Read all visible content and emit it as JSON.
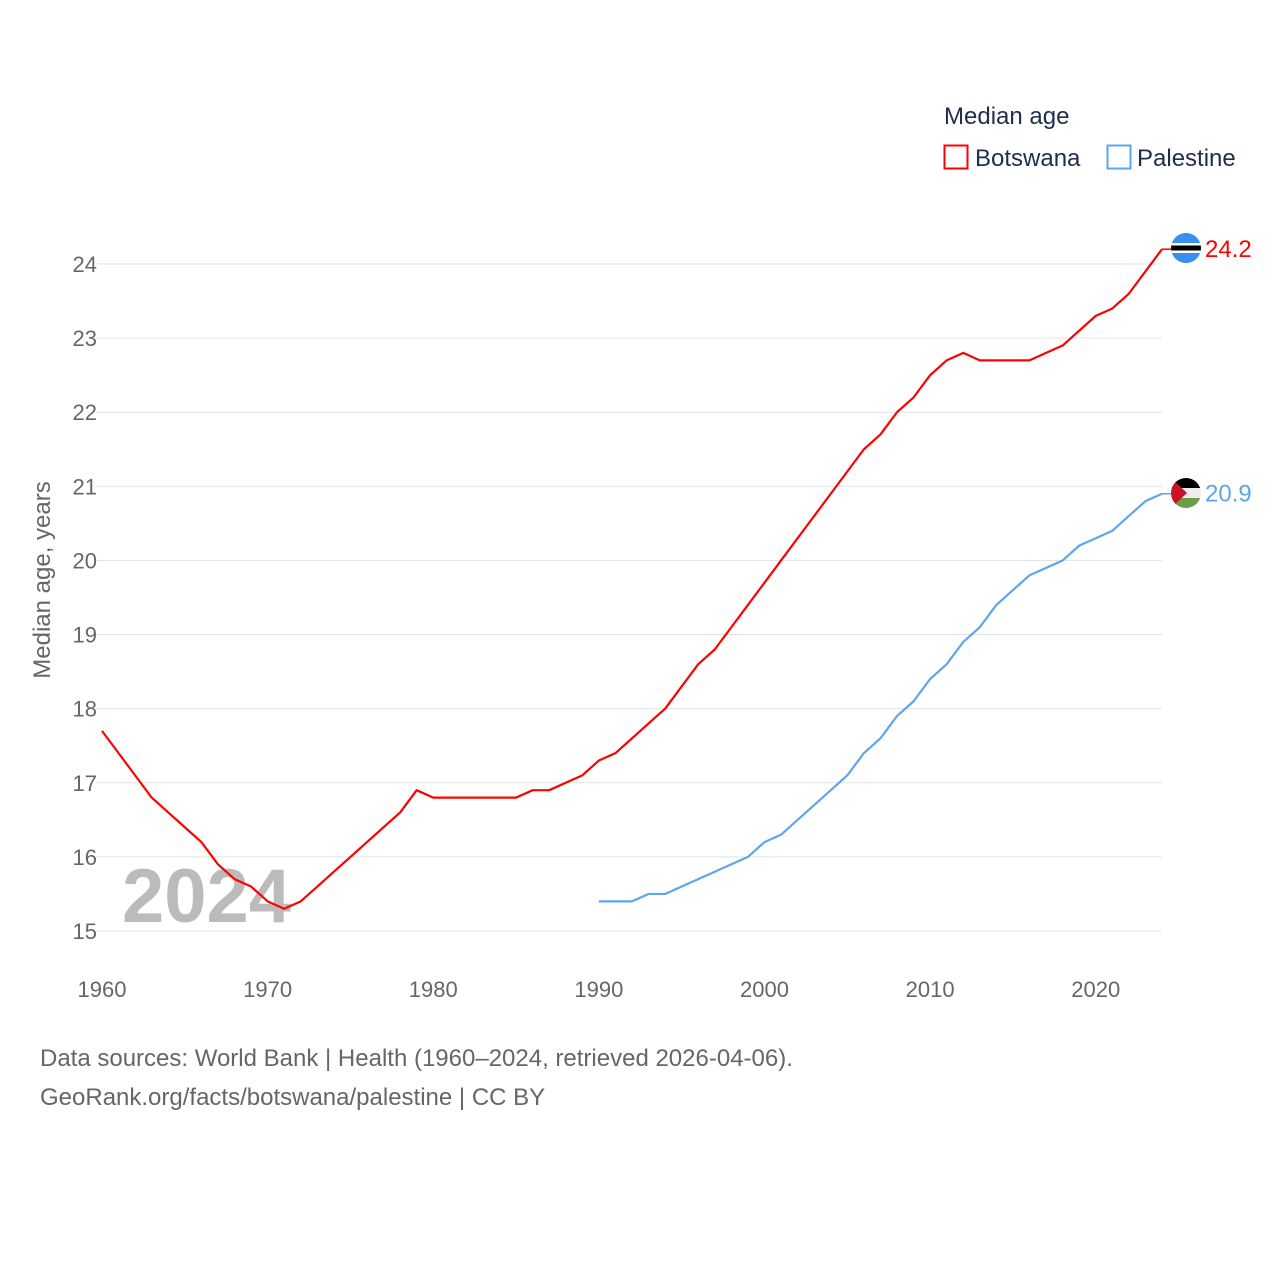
{
  "chart_data": {
    "type": "line",
    "title": "",
    "legend_title": "Median age",
    "legend_placement": "top-right",
    "xlabel": "",
    "ylabel": "Median age, years",
    "xlim": [
      1960,
      2024
    ],
    "ylim": [
      15,
      24.2
    ],
    "x_ticks": [
      1960,
      1970,
      1980,
      1990,
      2000,
      2010,
      2020
    ],
    "y_ticks": [
      15,
      16,
      17,
      18,
      19,
      20,
      21,
      22,
      23,
      24
    ],
    "grid": true,
    "year_watermark": "2024",
    "series": [
      {
        "name": "Botswana",
        "color": "#ff0000",
        "end_label": "24.2",
        "flag": "botswana-flag",
        "x_start": 1960,
        "values": [
          17.7,
          17.4,
          17.1,
          16.8,
          16.6,
          16.4,
          16.2,
          15.9,
          15.7,
          15.6,
          15.4,
          15.3,
          15.4,
          15.6,
          15.8,
          16.0,
          16.2,
          16.4,
          16.6,
          16.9,
          16.8,
          16.8,
          16.8,
          16.8,
          16.8,
          16.8,
          16.9,
          16.9,
          17.0,
          17.1,
          17.3,
          17.4,
          17.6,
          17.8,
          18.0,
          18.3,
          18.6,
          18.8,
          19.1,
          19.4,
          19.7,
          20.0,
          20.3,
          20.6,
          20.9,
          21.2,
          21.5,
          21.7,
          22.0,
          22.2,
          22.5,
          22.7,
          22.8,
          22.7,
          22.7,
          22.7,
          22.7,
          22.8,
          22.9,
          23.1,
          23.3,
          23.4,
          23.6,
          23.9,
          24.2
        ]
      },
      {
        "name": "Palestine",
        "color": "#5ea5ee",
        "end_label": "20.9",
        "flag": "palestine-flag",
        "x_start": 1990,
        "values": [
          15.4,
          15.4,
          15.4,
          15.5,
          15.5,
          15.6,
          15.7,
          15.8,
          15.9,
          16.0,
          16.2,
          16.3,
          16.5,
          16.7,
          16.9,
          17.1,
          17.4,
          17.6,
          17.9,
          18.1,
          18.4,
          18.6,
          18.9,
          19.1,
          19.4,
          19.6,
          19.8,
          19.9,
          20.0,
          20.2,
          20.3,
          20.4,
          20.6,
          20.8,
          20.9
        ]
      }
    ]
  },
  "footer": {
    "sources": "Data sources: World Bank | Health (1960–2024, retrieved 2026-04-06).",
    "link": "GeoRank.org/facts/botswana/palestine | CC BY"
  }
}
